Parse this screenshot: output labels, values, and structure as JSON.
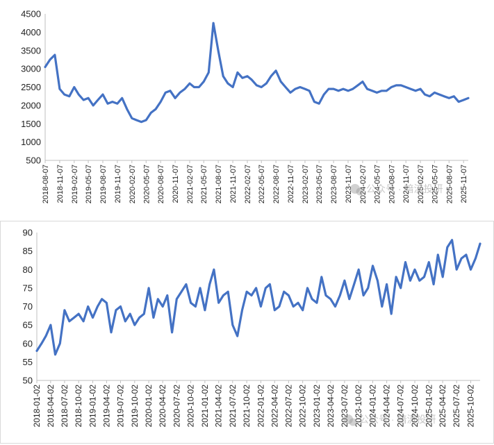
{
  "watermark": {
    "text": "公众号 · 暗流投研",
    "icon": "wechat-icon"
  },
  "chart_data": [
    {
      "type": "line",
      "title": "",
      "xlabel": "",
      "ylabel": "",
      "ylim": [
        500,
        4500
      ],
      "yticks": [
        500,
        1000,
        1500,
        2000,
        2500,
        3000,
        3500,
        4000,
        4500
      ],
      "grid": false,
      "line_color": "#4472C4",
      "xticks": [
        "2018-08-07",
        "2018-11-07",
        "2019-02-07",
        "2019-05-07",
        "2019-08-07",
        "2019-11-07",
        "2020-02-07",
        "2020-05-07",
        "2020-08-07",
        "2020-11-07",
        "2021-02-07",
        "2021-05-07",
        "2021-08-07",
        "2021-11-07",
        "2022-02-07",
        "2022-05-07",
        "2022-08-07",
        "2022-11-07",
        "2023-02-07",
        "2023-05-07",
        "2023-08-07",
        "2023-11-07",
        "2024-02-07",
        "2024-05-07",
        "2024-08-07",
        "2024-11-07",
        "2025-02-07",
        "2025-05-07",
        "2025-08-07",
        "2025-11-07"
      ],
      "series": [
        {
          "x": [
            "2018-08-07",
            "2018-09-07",
            "2018-10-07",
            "2018-11-07",
            "2018-12-07",
            "2019-01-07",
            "2019-02-07",
            "2019-03-07",
            "2019-04-07",
            "2019-05-07",
            "2019-06-07",
            "2019-07-07",
            "2019-08-07",
            "2019-09-07",
            "2019-10-07",
            "2019-11-07",
            "2019-12-07",
            "2020-01-07",
            "2020-02-07",
            "2020-03-07",
            "2020-04-07",
            "2020-05-07",
            "2020-06-07",
            "2020-07-07",
            "2020-08-07",
            "2020-09-07",
            "2020-10-07",
            "2020-11-07",
            "2020-12-07",
            "2021-01-07",
            "2021-02-07",
            "2021-03-07",
            "2021-04-07",
            "2021-05-07",
            "2021-06-07",
            "2021-07-07",
            "2021-08-07",
            "2021-09-07",
            "2021-10-07",
            "2021-11-07",
            "2021-12-07",
            "2022-01-07",
            "2022-02-07",
            "2022-03-07",
            "2022-04-07",
            "2022-05-07",
            "2022-06-07",
            "2022-07-07",
            "2022-08-07",
            "2022-09-07",
            "2022-10-07",
            "2022-11-07",
            "2022-12-07",
            "2023-01-07",
            "2023-02-07",
            "2023-03-07",
            "2023-04-07",
            "2023-05-07",
            "2023-06-07",
            "2023-07-07",
            "2023-08-07",
            "2023-09-07",
            "2023-10-07",
            "2023-11-07",
            "2023-12-07",
            "2024-01-07",
            "2024-02-07",
            "2024-03-07",
            "2024-04-07",
            "2024-05-07",
            "2024-06-07",
            "2024-07-07",
            "2024-08-07",
            "2024-09-07",
            "2024-10-07",
            "2024-11-07",
            "2024-12-07",
            "2025-01-07",
            "2025-02-07",
            "2025-03-07",
            "2025-04-07",
            "2025-05-07",
            "2025-06-07",
            "2025-07-07",
            "2025-08-07",
            "2025-09-07",
            "2025-10-07",
            "2025-11-07",
            "2025-12-07"
          ],
          "values": [
            3050,
            3250,
            3380,
            2450,
            2300,
            2250,
            2500,
            2300,
            2150,
            2200,
            2000,
            2150,
            2300,
            2050,
            2100,
            2050,
            2200,
            1900,
            1650,
            1600,
            1550,
            1600,
            1800,
            1900,
            2100,
            2350,
            2400,
            2200,
            2350,
            2450,
            2600,
            2500,
            2500,
            2650,
            2900,
            4250,
            3500,
            2800,
            2600,
            2500,
            2900,
            2750,
            2800,
            2700,
            2550,
            2500,
            2600,
            2800,
            2950,
            2650,
            2500,
            2350,
            2450,
            2500,
            2450,
            2400,
            2100,
            2050,
            2300,
            2450,
            2450,
            2400,
            2450,
            2400,
            2450,
            2550,
            2650,
            2450,
            2400,
            2350,
            2400,
            2400,
            2500,
            2550,
            2550,
            2500,
            2450,
            2400,
            2450,
            2300,
            2250,
            2350,
            2300,
            2250,
            2200,
            2250,
            2100,
            2150,
            2200
          ]
        }
      ]
    },
    {
      "type": "line",
      "title": "",
      "xlabel": "",
      "ylabel": "",
      "ylim": [
        50,
        90
      ],
      "yticks": [
        50,
        55,
        60,
        65,
        70,
        75,
        80,
        85,
        90
      ],
      "grid": false,
      "line_color": "#4472C4",
      "xticks": [
        "2018-01-02",
        "2018-04-02",
        "2018-07-02",
        "2018-10-02",
        "2019-01-02",
        "2019-04-02",
        "2019-07-02",
        "2019-10-02",
        "2020-01-02",
        "2020-04-02",
        "2020-07-02",
        "2020-10-02",
        "2021-01-02",
        "2021-04-02",
        "2021-07-02",
        "2021-10-02",
        "2022-01-02",
        "2022-04-02",
        "2022-07-02",
        "2022-10-02",
        "2023-01-02",
        "2023-04-02",
        "2023-07-02",
        "2023-10-02",
        "2024-01-02",
        "2024-04-02",
        "2024-07-02",
        "2024-10-02",
        "2025-01-02",
        "2025-04-02",
        "2025-07-02",
        "2025-10-02"
      ],
      "series": [
        {
          "x": [
            "2018-01-02",
            "2018-02-02",
            "2018-03-02",
            "2018-04-02",
            "2018-05-02",
            "2018-06-02",
            "2018-07-02",
            "2018-08-02",
            "2018-09-02",
            "2018-10-02",
            "2018-11-02",
            "2018-12-02",
            "2019-01-02",
            "2019-02-02",
            "2019-03-02",
            "2019-04-02",
            "2019-05-02",
            "2019-06-02",
            "2019-07-02",
            "2019-08-02",
            "2019-09-02",
            "2019-10-02",
            "2019-11-02",
            "2019-12-02",
            "2020-01-02",
            "2020-02-02",
            "2020-03-02",
            "2020-04-02",
            "2020-05-02",
            "2020-06-02",
            "2020-07-02",
            "2020-08-02",
            "2020-09-02",
            "2020-10-02",
            "2020-11-02",
            "2020-12-02",
            "2021-01-02",
            "2021-02-02",
            "2021-03-02",
            "2021-04-02",
            "2021-05-02",
            "2021-06-02",
            "2021-07-02",
            "2021-08-02",
            "2021-09-02",
            "2021-10-02",
            "2021-11-02",
            "2021-12-02",
            "2022-01-02",
            "2022-02-02",
            "2022-03-02",
            "2022-04-02",
            "2022-05-02",
            "2022-06-02",
            "2022-07-02",
            "2022-08-02",
            "2022-09-02",
            "2022-10-02",
            "2022-11-02",
            "2022-12-02",
            "2023-01-02",
            "2023-02-02",
            "2023-03-02",
            "2023-04-02",
            "2023-05-02",
            "2023-06-02",
            "2023-07-02",
            "2023-08-02",
            "2023-09-02",
            "2023-10-02",
            "2023-11-02",
            "2023-12-02",
            "2024-01-02",
            "2024-02-02",
            "2024-03-02",
            "2024-04-02",
            "2024-05-02",
            "2024-06-02",
            "2024-07-02",
            "2024-08-02",
            "2024-09-02",
            "2024-10-02",
            "2024-11-02",
            "2024-12-02",
            "2025-01-02",
            "2025-02-02",
            "2025-03-02",
            "2025-04-02",
            "2025-05-02",
            "2025-06-02",
            "2025-07-02",
            "2025-08-02",
            "2025-09-02",
            "2025-10-02",
            "2025-11-02",
            "2025-12-02"
          ],
          "values": [
            58,
            60,
            62,
            65,
            57,
            60,
            69,
            66,
            67,
            68,
            66,
            70,
            67,
            70,
            72,
            71,
            63,
            69,
            70,
            66,
            68,
            65,
            67,
            68,
            75,
            67,
            72,
            70,
            73,
            63,
            72,
            74,
            76,
            71,
            70,
            75,
            69,
            76,
            80,
            71,
            73,
            74,
            65,
            62,
            69,
            74,
            73,
            75,
            70,
            75,
            76,
            69,
            70,
            74,
            73,
            70,
            71,
            69,
            75,
            72,
            71,
            78,
            73,
            72,
            70,
            73,
            77,
            72,
            76,
            80,
            73,
            75,
            81,
            77,
            70,
            76,
            68,
            78,
            75,
            82,
            77,
            80,
            77,
            78,
            82,
            76,
            84,
            78,
            86,
            88,
            80,
            83,
            84,
            80,
            83,
            87
          ]
        }
      ]
    }
  ]
}
